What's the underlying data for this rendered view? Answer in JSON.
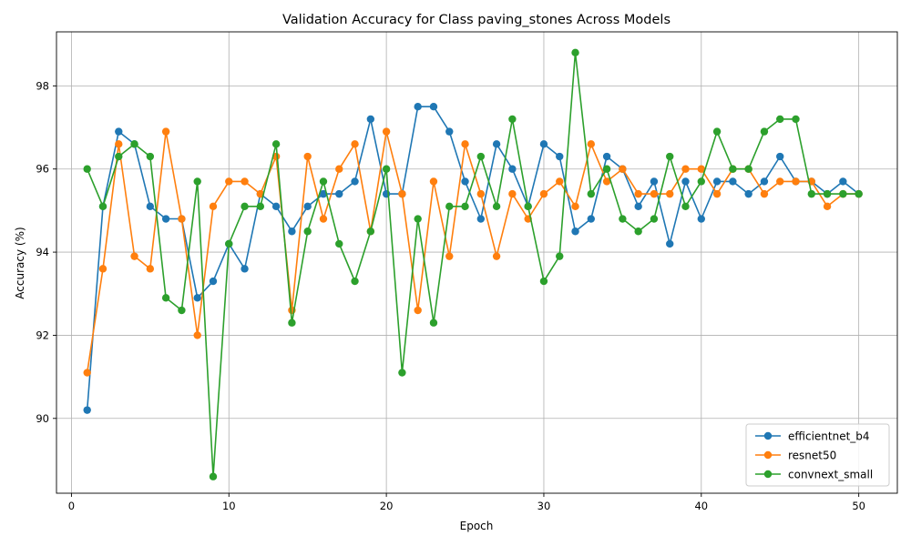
{
  "chart_data": {
    "type": "line",
    "title": "Validation Accuracy for Class paving_stones Across Models",
    "xlabel": "Epoch",
    "ylabel": "Accuracy (%)",
    "xlim": [
      -0.95,
      52.45
    ],
    "ylim": [
      88.2,
      99.3
    ],
    "xticks": [
      0,
      10,
      20,
      30,
      40,
      50
    ],
    "yticks": [
      90,
      92,
      94,
      96,
      98
    ],
    "grid": true,
    "legend_position": "lower-right",
    "x": [
      1,
      2,
      3,
      4,
      5,
      6,
      7,
      8,
      9,
      10,
      11,
      12,
      13,
      14,
      15,
      16,
      17,
      18,
      19,
      20,
      21,
      22,
      23,
      24,
      25,
      26,
      27,
      28,
      29,
      30,
      31,
      32,
      33,
      34,
      35,
      36,
      37,
      38,
      39,
      40,
      41,
      42,
      43,
      44,
      45,
      46,
      47,
      48,
      49,
      50
    ],
    "series": [
      {
        "name": "efficientnet_b4",
        "color": "#1f77b4",
        "values": [
          90.2,
          95.1,
          96.9,
          96.6,
          95.1,
          94.8,
          94.8,
          92.9,
          93.3,
          94.2,
          93.6,
          95.4,
          95.1,
          94.5,
          95.1,
          95.4,
          95.4,
          95.7,
          97.2,
          95.4,
          95.4,
          97.5,
          97.5,
          96.9,
          95.7,
          94.8,
          96.6,
          96.0,
          95.1,
          96.6,
          96.3,
          94.5,
          94.8,
          96.3,
          96.0,
          95.1,
          95.7,
          94.2,
          95.7,
          94.8,
          95.7,
          95.7,
          95.4,
          95.7,
          96.3,
          95.7,
          95.7,
          95.4,
          95.7,
          95.4
        ]
      },
      {
        "name": "resnet50",
        "color": "#ff7f0e",
        "values": [
          91.1,
          93.6,
          96.6,
          93.9,
          93.6,
          96.9,
          94.8,
          92.0,
          95.1,
          95.7,
          95.7,
          95.4,
          96.3,
          92.6,
          96.3,
          94.8,
          96.0,
          96.6,
          94.5,
          96.9,
          95.4,
          92.6,
          95.7,
          93.9,
          96.6,
          95.4,
          93.9,
          95.4,
          94.8,
          95.4,
          95.7,
          95.1,
          96.6,
          95.7,
          96.0,
          95.4,
          95.4,
          95.4,
          96.0,
          96.0,
          95.4,
          96.0,
          96.0,
          95.4,
          95.7,
          95.7,
          95.7,
          95.1,
          95.4,
          95.4
        ]
      },
      {
        "name": "convnext_small",
        "color": "#2ca02c",
        "values": [
          96.0,
          95.1,
          96.3,
          96.6,
          96.3,
          92.9,
          92.6,
          95.7,
          88.6,
          94.2,
          95.1,
          95.1,
          96.6,
          92.3,
          94.5,
          95.7,
          94.2,
          93.3,
          94.5,
          96.0,
          91.1,
          94.8,
          92.3,
          95.1,
          95.1,
          96.3,
          95.1,
          97.2,
          95.1,
          93.3,
          93.9,
          98.8,
          95.4,
          96.0,
          94.8,
          94.5,
          94.8,
          96.3,
          95.1,
          95.7,
          96.9,
          96.0,
          96.0,
          96.9,
          97.2,
          97.2,
          95.4,
          95.4,
          95.4,
          95.4
        ]
      }
    ]
  }
}
